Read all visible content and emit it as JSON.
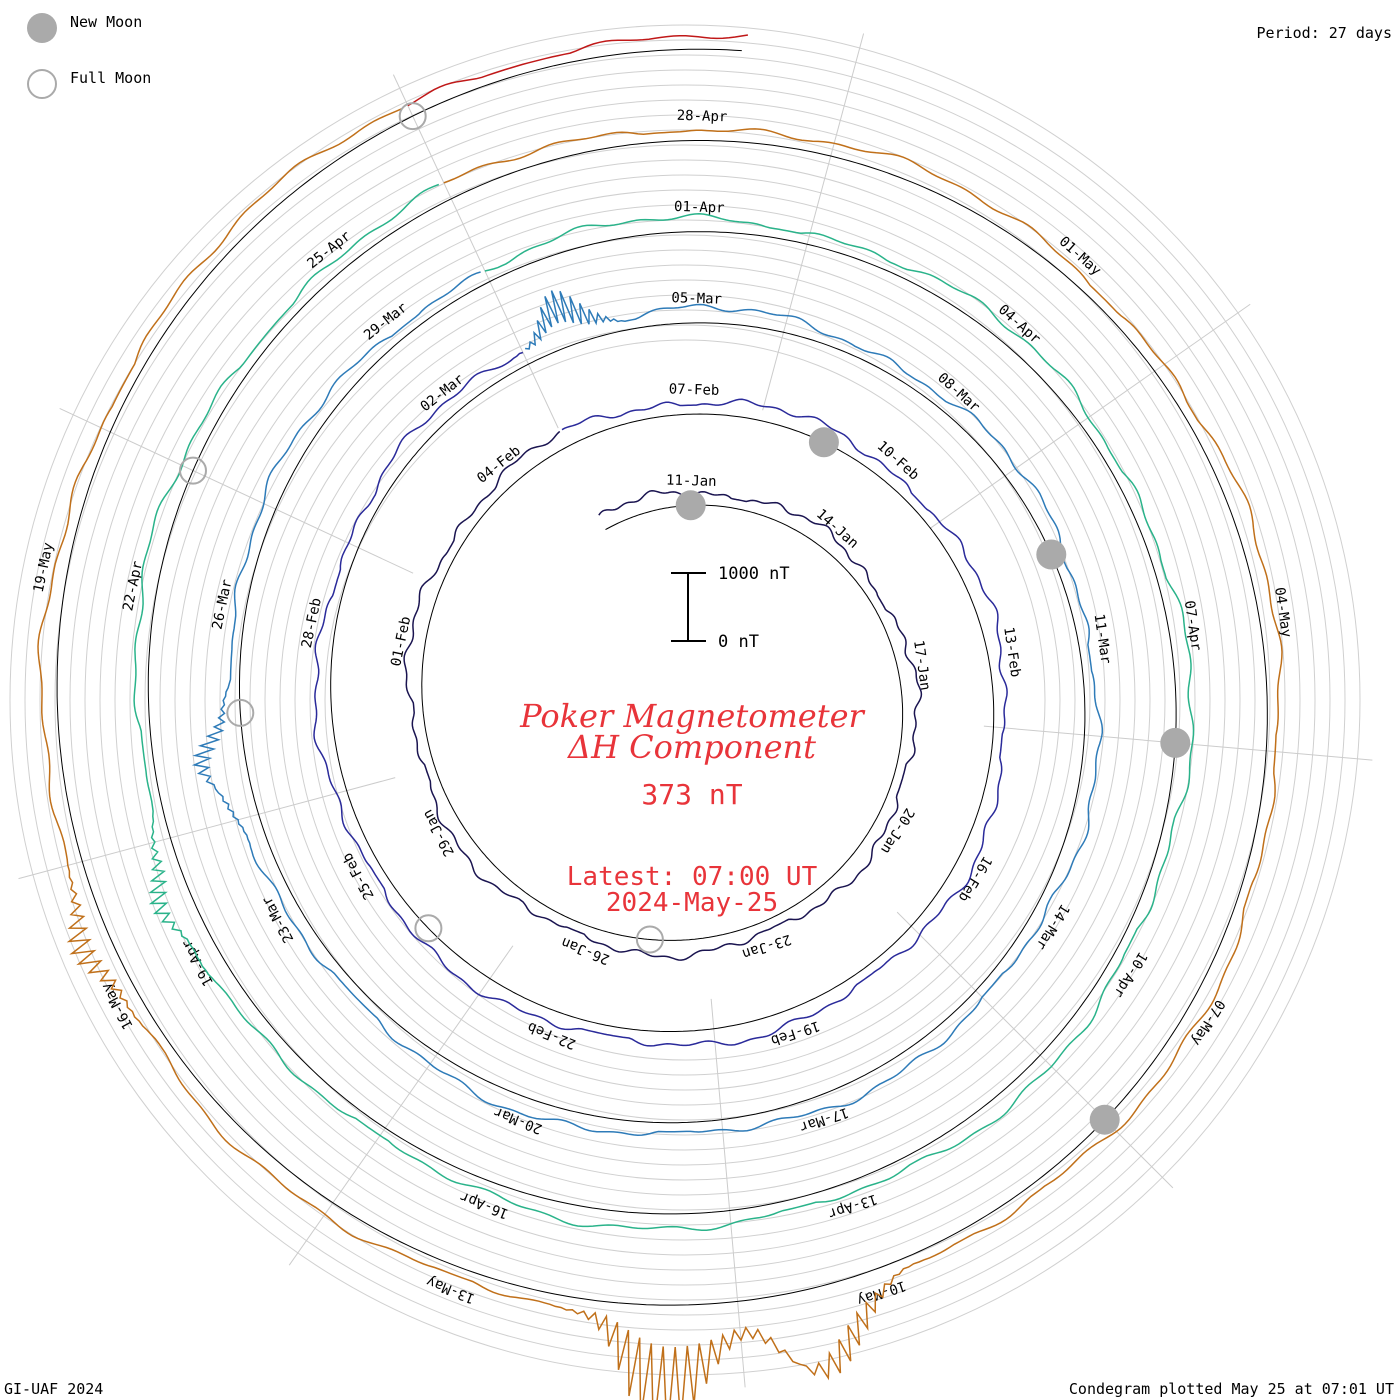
{
  "legend": {
    "new_moon": "New Moon",
    "full_moon": "Full Moon",
    "new_moon_color": "#aaaaaa",
    "full_moon_color": "#aaaaaa"
  },
  "period_label": "Period: 27 days",
  "footer": {
    "left": "GI-UAF 2024",
    "right": "Condegram plotted May 25 at 07:01 UT"
  },
  "center": {
    "title_line1": "Poker Magnetometer",
    "title_line2": "ΔH Component",
    "value": "373 nT",
    "latest": "Latest: 07:00 UT",
    "date": "2024-May-25"
  },
  "scale_bar": {
    "top_label": "1000 nT",
    "bottom_label": "0 nT"
  },
  "chart_data": {
    "type": "line",
    "layout": "spiral condegram",
    "period_days": 27,
    "start_date": "2024-01-09",
    "end_date": "2024-05-25",
    "scale_nT": [
      0,
      1000
    ],
    "grid": true,
    "spiral_date_labels": [
      "11-Jan",
      "14-Jan",
      "17-Jan",
      "20-Jan",
      "23-Jan",
      "26-Jan",
      "29-Jan",
      "01-Feb",
      "04-Feb",
      "07-Feb",
      "10-Feb",
      "13-Feb",
      "16-Feb",
      "19-Feb",
      "22-Feb",
      "25-Feb",
      "28-Feb",
      "02-Mar",
      "05-Mar",
      "08-Mar",
      "11-Mar",
      "14-Mar",
      "17-Mar",
      "20-Mar",
      "23-Mar",
      "26-Mar",
      "29-Mar",
      "01-Apr",
      "04-Apr",
      "07-Apr",
      "10-Apr",
      "13-Apr",
      "16-Apr",
      "19-Apr",
      "22-Apr",
      "25-Apr",
      "28-Apr",
      "01-May",
      "04-May",
      "07-May",
      "10-May",
      "13-May",
      "16-May",
      "19-May"
    ],
    "series_colors": [
      "#1a1450",
      "#2a2a9a",
      "#2e7bb8",
      "#2ab38a",
      "#7fc02c",
      "#b2a012",
      "#c0701a",
      "#c01818"
    ],
    "ring_segments": [
      {
        "from": "2024-01-09",
        "to": "2024-02-05",
        "color": "#1a1450"
      },
      {
        "from": "2024-02-05",
        "to": "2024-03-03",
        "color": "#2a2a9a"
      },
      {
        "from": "2024-03-03",
        "to": "2024-03-30",
        "color": "#2e7bb8"
      },
      {
        "from": "2024-03-30",
        "to": "2024-04-26",
        "color": "#2ab38a"
      },
      {
        "from": "2024-04-26",
        "to": "2024-05-23",
        "color": "#c0701a"
      },
      {
        "from": "2024-05-23",
        "to": "2024-05-25",
        "color": "#c01818"
      }
    ],
    "disturbances_nT": [
      {
        "date": "2024-03-03",
        "peak": 700
      },
      {
        "date": "2024-03-24",
        "peak": 750
      },
      {
        "date": "2024-04-19",
        "peak": 500
      },
      {
        "date": "2024-05-10",
        "peak": 1600
      },
      {
        "date": "2024-05-11",
        "peak": 1700
      },
      {
        "date": "2024-05-16",
        "peak": 500
      }
    ],
    "new_moons": [
      "2024-01-11",
      "2024-02-09",
      "2024-03-10",
      "2024-04-08",
      "2024-05-08"
    ],
    "full_moons": [
      "2024-01-25",
      "2024-02-24",
      "2024-03-25",
      "2024-04-23",
      "2024-05-23"
    ]
  }
}
